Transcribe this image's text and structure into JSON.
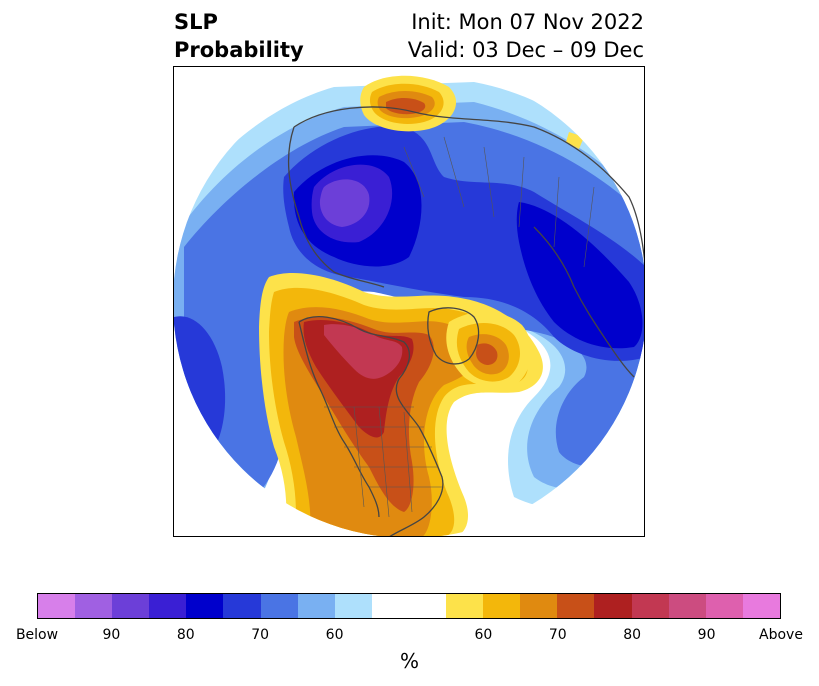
{
  "title": {
    "left_line1": "SLP",
    "left_line2": "Probability",
    "right_line1": "Init: Mon 07 Nov 2022",
    "right_line2": "Valid: 03 Dec – 09 Dec"
  },
  "colorbar": {
    "colors": [
      "#d77fea",
      "#a060e2",
      "#6c3fd8",
      "#3a1fd4",
      "#0000cc",
      "#2639d8",
      "#4a74e4",
      "#79b0f2",
      "#aee0fc",
      "#ffffff",
      "#ffffff",
      "#fde24a",
      "#f3b70b",
      "#e08a10",
      "#c85018",
      "#ae2020",
      "#c23852",
      "#cc4c80",
      "#de60ae",
      "#e87ade"
    ],
    "tick_labels": [
      "Below",
      "90",
      "80",
      "70",
      "60",
      "60",
      "70",
      "80",
      "90",
      "Above"
    ],
    "units": "%"
  },
  "map": {
    "below_colors": {
      "40": "#aee0fc",
      "50": "#79b0f2",
      "60": "#4a74e4",
      "70": "#2639d8",
      "80": "#0000cc",
      "90": "#3a1fd4",
      "95": "#6c3fd8"
    },
    "above_colors": {
      "40": "#fde24a",
      "50": "#f3b70b",
      "60": "#e08a10",
      "70": "#c85018",
      "80": "#ae2020",
      "90": "#c23852"
    },
    "coastline_color": "#444444",
    "border_color": "#555555"
  }
}
